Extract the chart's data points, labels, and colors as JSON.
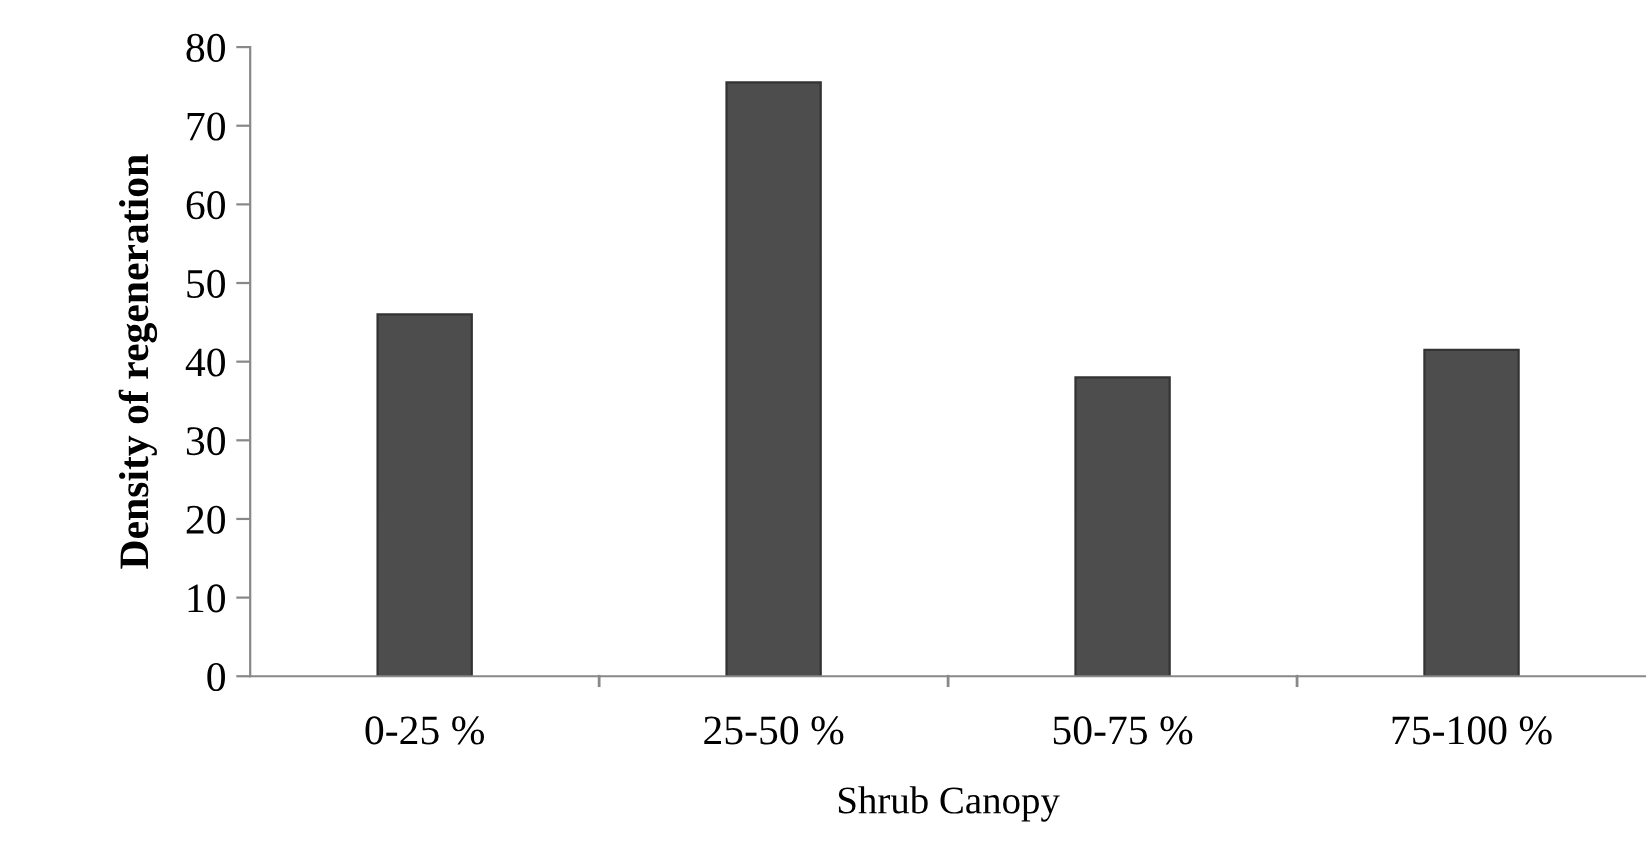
{
  "chart_data": {
    "type": "bar",
    "xlabel": "Shrub Canopy",
    "ylabel": "Density of regeneration",
    "categories": [
      "0-25 %",
      "25-50 %",
      "50-75 %",
      "75-100 %"
    ],
    "values": [
      46,
      75.5,
      38,
      41.5
    ],
    "color": "#4d4d4d",
    "ylim": [
      0,
      80
    ],
    "yticks": [
      0,
      10,
      20,
      30,
      40,
      50,
      60,
      70,
      80
    ],
    "grid": false,
    "legend": false
  }
}
